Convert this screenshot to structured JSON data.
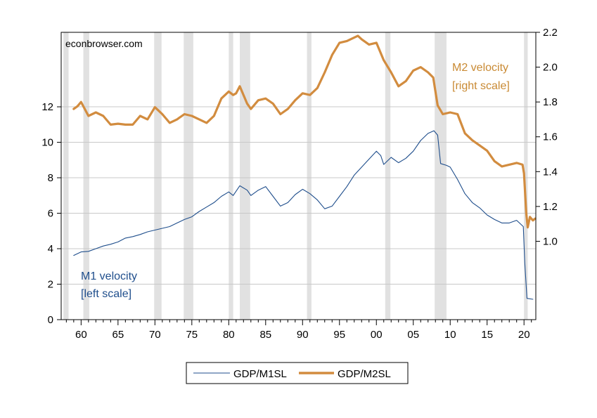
{
  "chart_data": {
    "type": "line",
    "watermark": "econbrowser.com",
    "x_tick_labels": [
      {
        "year": 1960,
        "label": "60"
      },
      {
        "year": 1965,
        "label": "65"
      },
      {
        "year": 1970,
        "label": "70"
      },
      {
        "year": 1975,
        "label": "75"
      },
      {
        "year": 1980,
        "label": "80"
      },
      {
        "year": 1985,
        "label": "85"
      },
      {
        "year": 1990,
        "label": "90"
      },
      {
        "year": 1995,
        "label": "95"
      },
      {
        "year": 2000,
        "label": "00"
      },
      {
        "year": 2005,
        "label": "05"
      },
      {
        "year": 2010,
        "label": "10"
      },
      {
        "year": 2015,
        "label": "15"
      },
      {
        "year": 2020,
        "label": "20"
      }
    ],
    "xlim": [
      1957.3,
      2021.6
    ],
    "left_axis": {
      "ylim": [
        0,
        16.2
      ],
      "ticks": [
        "0",
        "2",
        "4",
        "6",
        "8",
        "10",
        "12"
      ]
    },
    "right_axis": {
      "ylim": [
        0.55,
        2.2
      ],
      "ticks": [
        "1.0",
        "1.2",
        "1.4",
        "1.6",
        "1.8",
        "2.0",
        "2.2"
      ]
    },
    "recessions": [
      [
        1957.6,
        1958.3
      ],
      [
        1960.3,
        1961.1
      ],
      [
        1969.9,
        1970.9
      ],
      [
        1973.9,
        1975.2
      ],
      [
        1980.0,
        1980.6
      ],
      [
        1981.5,
        1982.9
      ],
      [
        1990.6,
        1991.2
      ],
      [
        2001.2,
        2001.9
      ],
      [
        2007.9,
        2009.5
      ],
      [
        2020.0,
        2020.5
      ]
    ],
    "annotations": {
      "m1": [
        "M1 velocity",
        "[left scale]"
      ],
      "m2": [
        "M2 velocity",
        "[right scale]"
      ]
    },
    "series": [
      {
        "name": "GDP/M1SL",
        "axis": "left",
        "color": "#1f4e8c",
        "points": [
          [
            1959.0,
            3.62
          ],
          [
            1960.0,
            3.82
          ],
          [
            1961.0,
            3.85
          ],
          [
            1962.0,
            4.0
          ],
          [
            1963.0,
            4.15
          ],
          [
            1964.0,
            4.25
          ],
          [
            1965.0,
            4.38
          ],
          [
            1966.0,
            4.6
          ],
          [
            1967.0,
            4.68
          ],
          [
            1968.0,
            4.8
          ],
          [
            1969.0,
            4.95
          ],
          [
            1970.0,
            5.05
          ],
          [
            1971.0,
            5.15
          ],
          [
            1972.0,
            5.25
          ],
          [
            1973.0,
            5.45
          ],
          [
            1974.0,
            5.65
          ],
          [
            1975.0,
            5.8
          ],
          [
            1976.0,
            6.1
          ],
          [
            1977.0,
            6.35
          ],
          [
            1978.0,
            6.6
          ],
          [
            1979.0,
            6.95
          ],
          [
            1980.0,
            7.2
          ],
          [
            1980.6,
            7.0
          ],
          [
            1981.5,
            7.55
          ],
          [
            1982.5,
            7.3
          ],
          [
            1983.0,
            7.0
          ],
          [
            1984.0,
            7.3
          ],
          [
            1985.0,
            7.5
          ],
          [
            1986.0,
            6.95
          ],
          [
            1987.0,
            6.4
          ],
          [
            1988.0,
            6.6
          ],
          [
            1989.0,
            7.05
          ],
          [
            1990.0,
            7.35
          ],
          [
            1991.0,
            7.1
          ],
          [
            1992.0,
            6.75
          ],
          [
            1993.0,
            6.25
          ],
          [
            1994.0,
            6.4
          ],
          [
            1995.0,
            6.95
          ],
          [
            1996.0,
            7.5
          ],
          [
            1997.0,
            8.15
          ],
          [
            1998.0,
            8.6
          ],
          [
            1999.0,
            9.05
          ],
          [
            2000.0,
            9.5
          ],
          [
            2000.6,
            9.25
          ],
          [
            2001.0,
            8.75
          ],
          [
            2002.0,
            9.15
          ],
          [
            2003.0,
            8.85
          ],
          [
            2004.0,
            9.1
          ],
          [
            2005.0,
            9.5
          ],
          [
            2006.0,
            10.1
          ],
          [
            2007.0,
            10.5
          ],
          [
            2007.8,
            10.65
          ],
          [
            2008.3,
            10.4
          ],
          [
            2008.7,
            8.8
          ],
          [
            2009.5,
            8.7
          ],
          [
            2010.0,
            8.6
          ],
          [
            2011.0,
            7.9
          ],
          [
            2012.0,
            7.1
          ],
          [
            2013.0,
            6.6
          ],
          [
            2014.0,
            6.3
          ],
          [
            2015.0,
            5.9
          ],
          [
            2016.0,
            5.65
          ],
          [
            2017.0,
            5.45
          ],
          [
            2018.0,
            5.45
          ],
          [
            2019.0,
            5.6
          ],
          [
            2019.9,
            5.25
          ],
          [
            2020.1,
            3.2
          ],
          [
            2020.4,
            1.2
          ],
          [
            2021.2,
            1.15
          ]
        ]
      },
      {
        "name": "GDP/M2SL",
        "axis": "right",
        "color": "#d28c3f",
        "points": [
          [
            1959.0,
            1.76
          ],
          [
            1959.5,
            1.775
          ],
          [
            1960.0,
            1.8
          ],
          [
            1961.0,
            1.72
          ],
          [
            1962.0,
            1.74
          ],
          [
            1963.0,
            1.72
          ],
          [
            1964.0,
            1.67
          ],
          [
            1965.0,
            1.675
          ],
          [
            1966.0,
            1.67
          ],
          [
            1967.0,
            1.67
          ],
          [
            1968.0,
            1.72
          ],
          [
            1969.0,
            1.7
          ],
          [
            1970.0,
            1.77
          ],
          [
            1971.0,
            1.73
          ],
          [
            1972.0,
            1.68
          ],
          [
            1973.0,
            1.7
          ],
          [
            1974.0,
            1.73
          ],
          [
            1975.0,
            1.72
          ],
          [
            1976.0,
            1.7
          ],
          [
            1977.0,
            1.68
          ],
          [
            1978.0,
            1.72
          ],
          [
            1979.0,
            1.82
          ],
          [
            1980.0,
            1.86
          ],
          [
            1980.6,
            1.84
          ],
          [
            1981.0,
            1.85
          ],
          [
            1981.5,
            1.89
          ],
          [
            1982.5,
            1.79
          ],
          [
            1983.0,
            1.76
          ],
          [
            1984.0,
            1.81
          ],
          [
            1985.0,
            1.82
          ],
          [
            1986.0,
            1.79
          ],
          [
            1987.0,
            1.73
          ],
          [
            1988.0,
            1.76
          ],
          [
            1989.0,
            1.81
          ],
          [
            1990.0,
            1.85
          ],
          [
            1991.0,
            1.84
          ],
          [
            1992.0,
            1.88
          ],
          [
            1993.0,
            1.97
          ],
          [
            1994.0,
            2.07
          ],
          [
            1995.0,
            2.14
          ],
          [
            1996.0,
            2.15
          ],
          [
            1997.0,
            2.17
          ],
          [
            1997.5,
            2.18
          ],
          [
            1998.0,
            2.16
          ],
          [
            1999.0,
            2.13
          ],
          [
            2000.0,
            2.14
          ],
          [
            2001.0,
            2.04
          ],
          [
            2002.0,
            1.97
          ],
          [
            2003.0,
            1.89
          ],
          [
            2004.0,
            1.92
          ],
          [
            2005.0,
            1.98
          ],
          [
            2006.0,
            2.0
          ],
          [
            2007.0,
            1.97
          ],
          [
            2007.7,
            1.94
          ],
          [
            2008.3,
            1.78
          ],
          [
            2009.0,
            1.73
          ],
          [
            2010.0,
            1.74
          ],
          [
            2011.0,
            1.73
          ],
          [
            2012.0,
            1.62
          ],
          [
            2013.0,
            1.58
          ],
          [
            2014.0,
            1.55
          ],
          [
            2015.0,
            1.52
          ],
          [
            2016.0,
            1.46
          ],
          [
            2017.0,
            1.43
          ],
          [
            2018.0,
            1.44
          ],
          [
            2019.0,
            1.45
          ],
          [
            2019.8,
            1.44
          ],
          [
            2020.0,
            1.39
          ],
          [
            2020.3,
            1.16
          ],
          [
            2020.5,
            1.08
          ],
          [
            2020.8,
            1.14
          ],
          [
            2021.2,
            1.12
          ],
          [
            2021.5,
            1.13
          ]
        ]
      }
    ]
  }
}
